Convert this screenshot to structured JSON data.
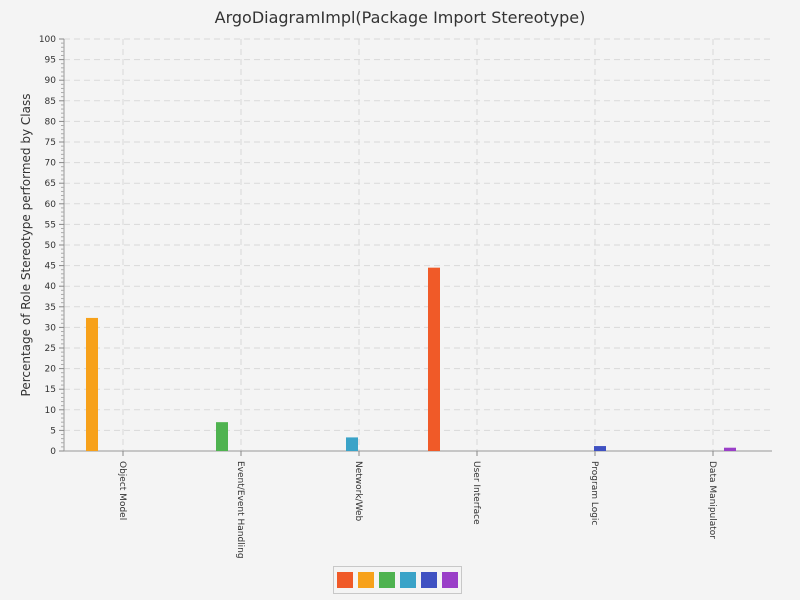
{
  "chart_data": {
    "type": "bar",
    "title": "ArgoDiagramImpl(Package Import Stereotype)",
    "xlabel": "",
    "ylabel": "Percentage of Role Stereotype performed by Class",
    "ylim": [
      0,
      100
    ],
    "yticks": [
      0,
      5,
      10,
      15,
      20,
      25,
      30,
      35,
      40,
      45,
      50,
      55,
      60,
      65,
      70,
      75,
      80,
      85,
      90,
      95,
      100
    ],
    "grid": true,
    "legend_position": "bottom",
    "categories": [
      "Object Model",
      "Event/Event Handling",
      "Network/Web",
      "User Interface",
      "Program Logic",
      "Data Manipulator"
    ],
    "series": [
      {
        "color": "#f05a28",
        "values": [
          0,
          0,
          0,
          44.5,
          0,
          0
        ]
      },
      {
        "color": "#f7a11a",
        "values": [
          32.3,
          0,
          0,
          0,
          0,
          0
        ]
      },
      {
        "color": "#4fb350",
        "values": [
          0,
          7.0,
          0,
          0,
          0,
          0
        ]
      },
      {
        "color": "#3aa3c8",
        "values": [
          0,
          0,
          3.3,
          0,
          0,
          0
        ]
      },
      {
        "color": "#3f51c2",
        "values": [
          0,
          0,
          0,
          0,
          1.2,
          0
        ]
      },
      {
        "color": "#9a3fc8",
        "values": [
          0,
          0,
          0,
          0,
          0,
          0.8
        ]
      }
    ]
  }
}
